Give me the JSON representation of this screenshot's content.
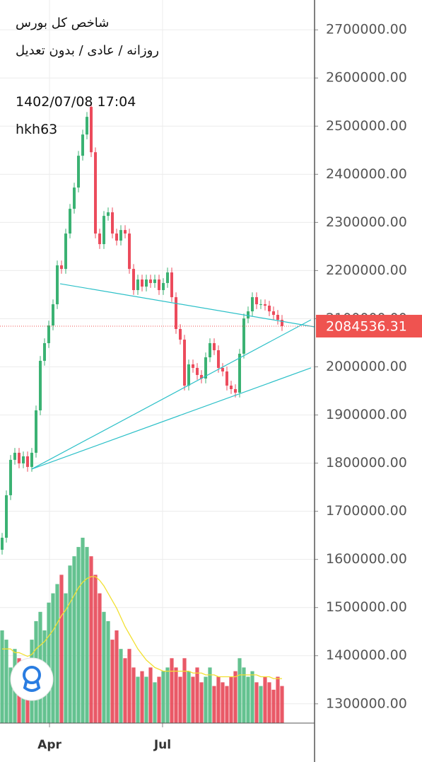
{
  "chart_data": {
    "type": "candlestick",
    "title": "شاخص کل بورس",
    "subtitle": "روزانه / عادی / بدون تعدیل",
    "date_label": "1402/07/08 17:04",
    "author": "hkh63",
    "open": [
      1620000,
      1645000,
      1733300,
      1806800,
      1821500,
      1799400,
      1814100,
      1792100,
      1821500,
      1909600,
      2012500,
      2049200,
      2085900,
      2130000,
      2210800,
      2203400,
      2276900,
      2328300,
      2372400,
      2438500,
      2482600,
      2540000,
      2445800,
      2276900,
      2254900,
      2313600,
      2321000,
      2276900,
      2262200,
      2284200,
      2276900,
      2203400,
      2159400,
      2181400,
      2166700,
      2181400,
      2174100,
      2181400,
      2159400,
      2174100,
      2196100,
      2144700,
      2078600,
      2056500,
      1961000,
      2005100,
      1997800,
      1983100,
      1975700,
      2019800,
      2049200,
      2034500,
      1997800,
      1990400,
      1961000,
      1953700,
      1946400,
      2027200,
      2100600,
      2115300,
      2144700,
      2130000,
      2130000,
      2127100,
      2115300,
      2108000,
      2097700
    ],
    "high": [
      1655000,
      1743300,
      1816800,
      1831500,
      1831500,
      1824100,
      1824100,
      1831500,
      1919600,
      2022500,
      2059200,
      2095900,
      2140000,
      2220800,
      2220800,
      2286900,
      2338300,
      2382400,
      2448500,
      2492600,
      2529300,
      2550000,
      2455800,
      2286900,
      2323600,
      2331000,
      2331000,
      2286900,
      2294200,
      2294200,
      2286900,
      2213400,
      2191400,
      2191400,
      2191400,
      2191400,
      2191400,
      2191400,
      2184100,
      2206100,
      2206100,
      2154700,
      2088600,
      2066500,
      2015100,
      2015100,
      2007800,
      1993100,
      2029800,
      2059200,
      2059200,
      2044500,
      2007800,
      2000400,
      1971000,
      1963700,
      2037200,
      2110600,
      2125300,
      2154700,
      2154700,
      2140000,
      2140000,
      2137100,
      2125300,
      2118000,
      2107700
    ],
    "low": [
      1610000,
      1635000,
      1723300,
      1796800,
      1789400,
      1789400,
      1782100,
      1782100,
      1811500,
      1899600,
      2002500,
      2039200,
      2075900,
      2120000,
      2193400,
      2193400,
      2266900,
      2318300,
      2362400,
      2428500,
      2472600,
      2435800,
      2266900,
      2244900,
      2244900,
      2303600,
      2266900,
      2252200,
      2252200,
      2266900,
      2193400,
      2149400,
      2149400,
      2156700,
      2156700,
      2164100,
      2164100,
      2149400,
      2149400,
      2164100,
      2134700,
      2068600,
      2046500,
      1951000,
      1951000,
      1987800,
      1973100,
      1965700,
      1965700,
      2009800,
      2024500,
      1987800,
      1980400,
      1951000,
      1943700,
      1936400,
      1936400,
      2017200,
      2090600,
      2105300,
      2120000,
      2120000,
      2117100,
      2105300,
      2098000,
      2087700,
      2074536.31
    ],
    "close": [
      1645000,
      1733300,
      1806800,
      1821500,
      1799400,
      1814100,
      1792100,
      1821500,
      1909600,
      2012500,
      2049200,
      2085900,
      2130000,
      2210800,
      2203400,
      2276900,
      2328300,
      2372400,
      2438500,
      2482600,
      2519300,
      2445800,
      2276900,
      2254900,
      2313600,
      2321000,
      2276900,
      2262200,
      2284200,
      2276900,
      2203400,
      2159400,
      2181400,
      2166700,
      2181400,
      2174100,
      2181400,
      2159400,
      2174100,
      2196100,
      2144700,
      2078600,
      2056500,
      1961000,
      2005100,
      1997800,
      1983100,
      1975700,
      2019800,
      2049200,
      2034500,
      1997800,
      1990400,
      1961000,
      1953700,
      1946400,
      2027200,
      2100600,
      2115300,
      2144700,
      2130000,
      2130000,
      2127100,
      2115300,
      2108000,
      2097700,
      2084536.31
    ],
    "volume": [
      50,
      45,
      30,
      40,
      35,
      25,
      30,
      45,
      55,
      60,
      50,
      65,
      70,
      75,
      80,
      70,
      85,
      90,
      95,
      100,
      95,
      90,
      80,
      70,
      60,
      55,
      45,
      50,
      40,
      35,
      40,
      30,
      25,
      28,
      25,
      30,
      22,
      25,
      28,
      30,
      35,
      30,
      25,
      35,
      28,
      25,
      30,
      22,
      25,
      30,
      20,
      25,
      22,
      20,
      25,
      28,
      35,
      30,
      25,
      28,
      22,
      20,
      25,
      22,
      18,
      25,
      20
    ],
    "volume_ma": [
      40,
      40,
      40,
      38,
      38,
      37,
      36,
      37,
      40,
      42,
      44,
      47,
      50,
      54,
      58,
      61,
      65,
      69,
      73,
      76,
      78,
      79,
      79,
      77,
      74,
      70,
      66,
      62,
      57,
      52,
      48,
      44,
      40,
      37,
      34,
      32,
      30,
      29,
      28,
      28,
      28,
      28,
      28,
      28,
      28,
      27,
      27,
      27,
      26,
      26,
      26,
      25,
      25,
      25,
      25,
      25,
      26,
      26,
      26,
      26,
      26,
      25,
      25,
      25,
      24,
      24,
      24
    ],
    "volume_ylim": [
      0,
      100
    ],
    "xlim": [
      -0.5,
      73.67
    ],
    "xticks": [
      {
        "value": 11.17,
        "label": "Apr"
      },
      {
        "value": 37.83,
        "label": "Jul"
      }
    ],
    "ylim": [
      1260000,
      2762000
    ],
    "yticks": [
      {
        "value": 1300000,
        "label": "1300000.00"
      },
      {
        "value": 1400000,
        "label": "1400000.00"
      },
      {
        "value": 1500000,
        "label": "1500000.00"
      },
      {
        "value": 1600000,
        "label": "1600000.00"
      },
      {
        "value": 1700000,
        "label": "1700000.00"
      },
      {
        "value": 1800000,
        "label": "1800000.00"
      },
      {
        "value": 1900000,
        "label": "1900000.00"
      },
      {
        "value": 2000000,
        "label": "2000000.00"
      },
      {
        "value": 2100000,
        "label": "2100000.00"
      },
      {
        "value": 2200000,
        "label": "2200000.00"
      },
      {
        "value": 2300000,
        "label": "2300000.00"
      },
      {
        "value": 2400000,
        "label": "2400000.00"
      },
      {
        "value": 2500000,
        "label": "2500000.00"
      },
      {
        "value": 2600000,
        "label": "2600000.00"
      },
      {
        "value": 2700000,
        "label": "2700000.00"
      }
    ],
    "trend_lines": [
      {
        "x": [
          13.67,
          73.67
        ],
        "y": [
          2172600,
          2083000
        ]
      },
      {
        "x": [
          7,
          72.83
        ],
        "y": [
          1787700,
          2097700
        ]
      },
      {
        "x": [
          7,
          72.83
        ],
        "y": [
          1787700,
          1997800
        ]
      }
    ],
    "up_color": "#3bb273",
    "down_color": "#ec4b5c",
    "volume_up_color": "#5cbf8a",
    "volume_down_color": "#e8505f",
    "ma_color": "#f2e032",
    "trend_color": "#2cc0c8",
    "last_price_color": "#ef5350",
    "grid": true
  }
}
